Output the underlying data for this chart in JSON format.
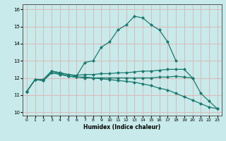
{
  "xlabel": "Humidex (Indice chaleur)",
  "ylabel": "",
  "bg_color": "#c8eaea",
  "grid_color": "#dbb8b8",
  "line_color": "#1a7a6e",
  "xlim": [
    -0.5,
    23.5
  ],
  "ylim": [
    9.8,
    16.3
  ],
  "xticks": [
    0,
    1,
    2,
    3,
    4,
    5,
    6,
    7,
    8,
    9,
    10,
    11,
    12,
    13,
    14,
    15,
    16,
    17,
    18,
    19,
    20,
    21,
    22,
    23
  ],
  "yticks": [
    10,
    11,
    12,
    13,
    14,
    15,
    16
  ],
  "lines": [
    {
      "x": [
        0,
        1,
        2,
        3,
        4,
        5,
        6,
        7,
        8,
        9,
        10,
        11,
        12,
        13,
        14,
        15,
        16,
        17,
        18
      ],
      "y": [
        11.2,
        11.9,
        11.9,
        12.4,
        12.3,
        12.2,
        12.1,
        12.9,
        13.0,
        13.8,
        14.1,
        14.8,
        15.1,
        15.6,
        15.5,
        15.1,
        14.8,
        14.1,
        13.0
      ],
      "marker": "D",
      "markersize": 2.0
    },
    {
      "x": [
        0,
        1,
        2,
        3,
        4,
        5,
        6,
        7,
        8,
        9,
        10,
        11,
        12,
        13,
        14,
        15,
        16,
        17,
        18,
        19,
        20
      ],
      "y": [
        11.2,
        11.9,
        11.9,
        12.4,
        12.3,
        12.2,
        12.15,
        12.2,
        12.2,
        12.25,
        12.25,
        12.3,
        12.3,
        12.35,
        12.4,
        12.4,
        12.45,
        12.5,
        12.5,
        12.5,
        12.0
      ],
      "marker": "D",
      "markersize": 2.0
    },
    {
      "x": [
        0,
        1,
        2,
        3,
        4,
        5,
        6,
        7,
        8,
        9,
        10,
        11,
        12,
        13,
        14,
        15,
        16,
        17,
        18,
        19,
        20,
        21,
        22,
        23
      ],
      "y": [
        11.2,
        11.9,
        11.85,
        12.3,
        12.25,
        12.1,
        12.05,
        12.05,
        12.0,
        11.95,
        11.9,
        11.85,
        11.8,
        11.75,
        11.65,
        11.55,
        11.4,
        11.3,
        11.1,
        10.9,
        10.7,
        10.5,
        10.3,
        10.2
      ],
      "marker": "D",
      "markersize": 2.0
    },
    {
      "x": [
        0,
        1,
        2,
        3,
        4,
        5,
        6,
        7,
        8,
        9,
        10,
        11,
        12,
        13,
        14,
        15,
        16,
        17,
        18,
        19,
        20,
        21,
        22,
        23
      ],
      "y": [
        11.2,
        11.9,
        11.85,
        12.3,
        12.2,
        12.1,
        12.05,
        12.0,
        12.0,
        12.0,
        12.0,
        12.0,
        12.0,
        12.0,
        12.0,
        12.0,
        12.05,
        12.05,
        12.1,
        12.05,
        12.0,
        11.1,
        10.65,
        10.2
      ],
      "marker": "D",
      "markersize": 2.0
    }
  ]
}
